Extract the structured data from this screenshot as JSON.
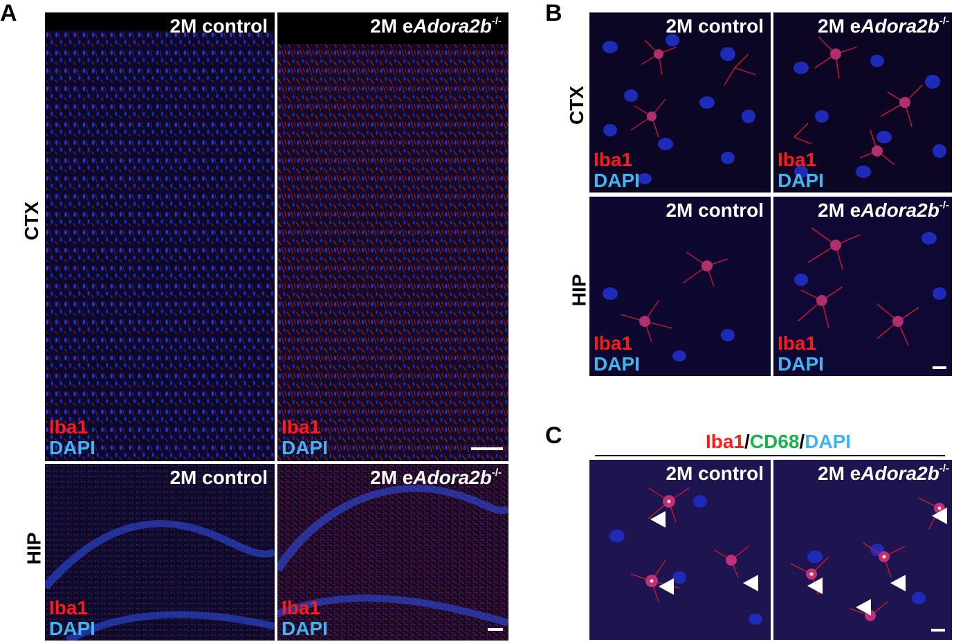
{
  "panels": {
    "a": "A",
    "b": "B",
    "c": "C"
  },
  "rows": {
    "ctx": "CTX",
    "hip": "HIP"
  },
  "conditions": {
    "control": "2M control",
    "mutant_prefix": "2M e",
    "mutant_gene": "Adora2b",
    "mutant_sup": "-/-"
  },
  "stains": {
    "iba1": "Iba1",
    "dapi": "DAPI",
    "cd68": "CD68"
  },
  "panel_c_title": {
    "iba1": "Iba1",
    "slash1": "/",
    "cd68": "CD68",
    "slash2": "/",
    "dapi": "DAPI"
  },
  "colors": {
    "iba1": "#ff1a1a",
    "dapi": "#3fb6f2",
    "cd68": "#18b24a",
    "background": "#0a0620"
  }
}
